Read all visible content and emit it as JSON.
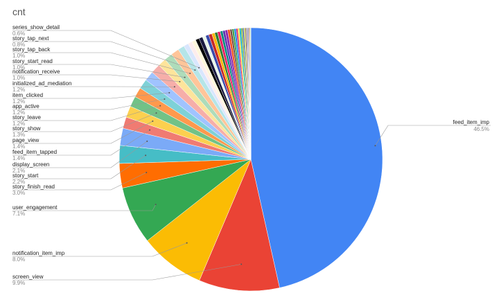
{
  "chart_data": {
    "type": "pie",
    "title": "cnt",
    "categories": [
      "feed_item_imp",
      "screen_view",
      "notification_item_imp",
      "user_engagement",
      "story_finish_read",
      "story_start",
      "display_screen",
      "feed_item_tapped",
      "page_view",
      "story_show",
      "story_leave",
      "app_active",
      "item_clicked",
      "initialized_ad_mediation",
      "notification_receive",
      "story_start_read",
      "story_tap_back",
      "story_tap_next",
      "series_show_detail",
      null,
      null,
      null,
      null,
      null,
      null,
      null,
      null,
      null,
      null,
      null,
      null,
      null,
      null,
      null,
      null,
      null,
      null,
      null,
      null,
      null,
      null,
      null,
      null,
      null,
      null,
      null,
      null,
      null,
      null
    ],
    "values": [
      46.5,
      9.9,
      8.0,
      7.1,
      3.0,
      2.2,
      2.1,
      1.4,
      1.4,
      1.3,
      1.2,
      1.2,
      1.2,
      1.2,
      1.0,
      1.0,
      1.0,
      0.8,
      0.6,
      0.5,
      0.5,
      0.45,
      0.45,
      0.4,
      0.4,
      0.4,
      0.35,
      0.35,
      0.35,
      0.3,
      0.3,
      0.3,
      0.3,
      0.25,
      0.25,
      0.25,
      0.2,
      0.2,
      0.2,
      0.2,
      0.15,
      0.15,
      0.15,
      0.1,
      0.1,
      0.1,
      0.1,
      0.1,
      0.05
    ],
    "value_labels": [
      "46.5%",
      "9.9%",
      "8.0%",
      "7.1%",
      "3.0%",
      "2.2%",
      "2.1%",
      "1.4%",
      "1.4%",
      "1.3%",
      "1.2%",
      "1.2%",
      "1.2%",
      "1.2%",
      "1.0%",
      "1.0%",
      "1.0%",
      "0.8%",
      "0.6%",
      null,
      null,
      null,
      null,
      null,
      null,
      null,
      null,
      null,
      null,
      null,
      null,
      null,
      null,
      null,
      null,
      null,
      null,
      null,
      null,
      null,
      null,
      null,
      null,
      null,
      null,
      null,
      null,
      null,
      null
    ],
    "colors": [
      "#4285f4",
      "#ea4335",
      "#fbbc04",
      "#34a853",
      "#ff6d01",
      "#46bdc6",
      "#7baaf7",
      "#f07b72",
      "#fcd04f",
      "#71c287",
      "#ff994d",
      "#7ed1d7",
      "#a0c3ff",
      "#f6aea9",
      "#fde49b",
      "#aedcba",
      "#ffc599",
      "#b5e5e8",
      "#d9e6fd",
      "#fdecec",
      "#fff6da",
      "#000000",
      "#1a1a40",
      "#e8f5e9",
      "#3949ab",
      "#c62828",
      "#ffb300",
      "#2e7d32",
      "#e91e63",
      "#00897b",
      "#5e35b1",
      "#8e24aa",
      "#f4511e",
      "#6d4c41",
      "#43a047",
      "#1e88e5",
      "#d81b60",
      "#fdd835",
      "#00acc1",
      "#7cb342",
      "#3949ab",
      "#c0ca33",
      "#8d6e63",
      "#546e7a",
      "#ab47bc",
      "#26a69a",
      "#ef5350",
      "#9ccc65",
      "#90a4ae"
    ]
  }
}
